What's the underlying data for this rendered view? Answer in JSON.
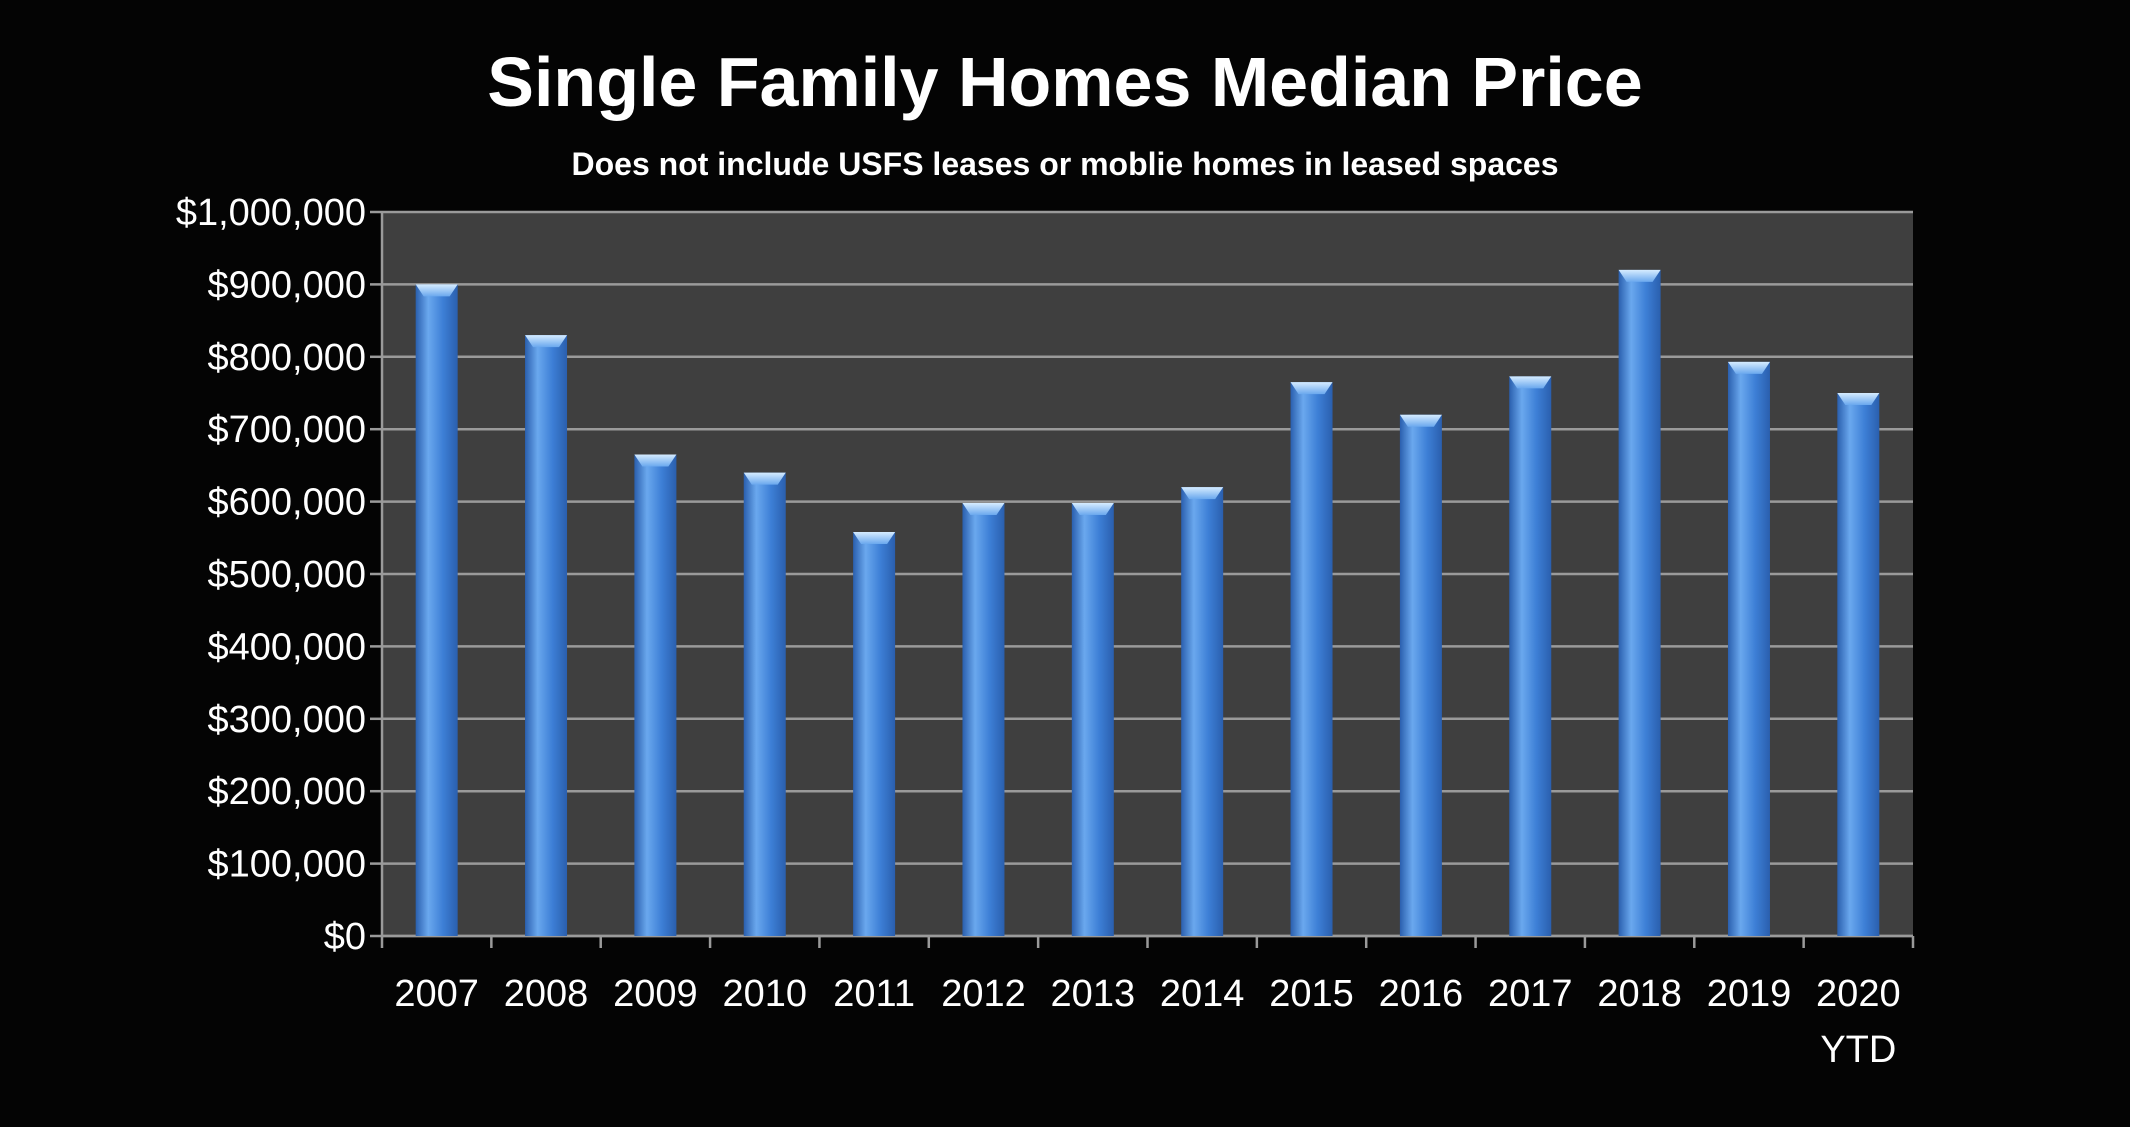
{
  "chart_data": {
    "type": "bar",
    "title": "Single Family Homes Median Price",
    "subtitle": "Does not include USFS leases or moblie homes in leased spaces",
    "xlabel": "",
    "ylabel": "",
    "categories": [
      "2007",
      "2008",
      "2009",
      "2010",
      "2011",
      "2012",
      "2013",
      "2014",
      "2015",
      "2016",
      "2017",
      "2018",
      "2019",
      "2020\nYTD"
    ],
    "category_lines": [
      [
        "2007"
      ],
      [
        "2008"
      ],
      [
        "2009"
      ],
      [
        "2010"
      ],
      [
        "2011"
      ],
      [
        "2012"
      ],
      [
        "2013"
      ],
      [
        "2014"
      ],
      [
        "2015"
      ],
      [
        "2016"
      ],
      [
        "2017"
      ],
      [
        "2018"
      ],
      [
        "2019"
      ],
      [
        "2020",
        "YTD"
      ]
    ],
    "values": [
      900000,
      830000,
      665000,
      640000,
      558000,
      598000,
      598000,
      620000,
      765000,
      720000,
      773000,
      920000,
      793000,
      750000
    ],
    "ylim": [
      0,
      1000000
    ],
    "ytick_values": [
      0,
      100000,
      200000,
      300000,
      400000,
      500000,
      600000,
      700000,
      800000,
      900000,
      1000000
    ],
    "ytick_labels": [
      "$0",
      "$100,000",
      "$200,000",
      "$300,000",
      "$400,000",
      "$500,000",
      "$600,000",
      "$700,000",
      "$800,000",
      "$900,000",
      "$1,000,000"
    ],
    "grid": true,
    "legend": "none",
    "colors": {
      "bar": "#3d7fd6",
      "bar_light": "#6aa8ee",
      "bar_dark": "#2a5fae",
      "plot_background": "#3f3f3f",
      "page_background": "#040404",
      "gridline": "#9a9a9a",
      "text": "#ffffff"
    }
  }
}
